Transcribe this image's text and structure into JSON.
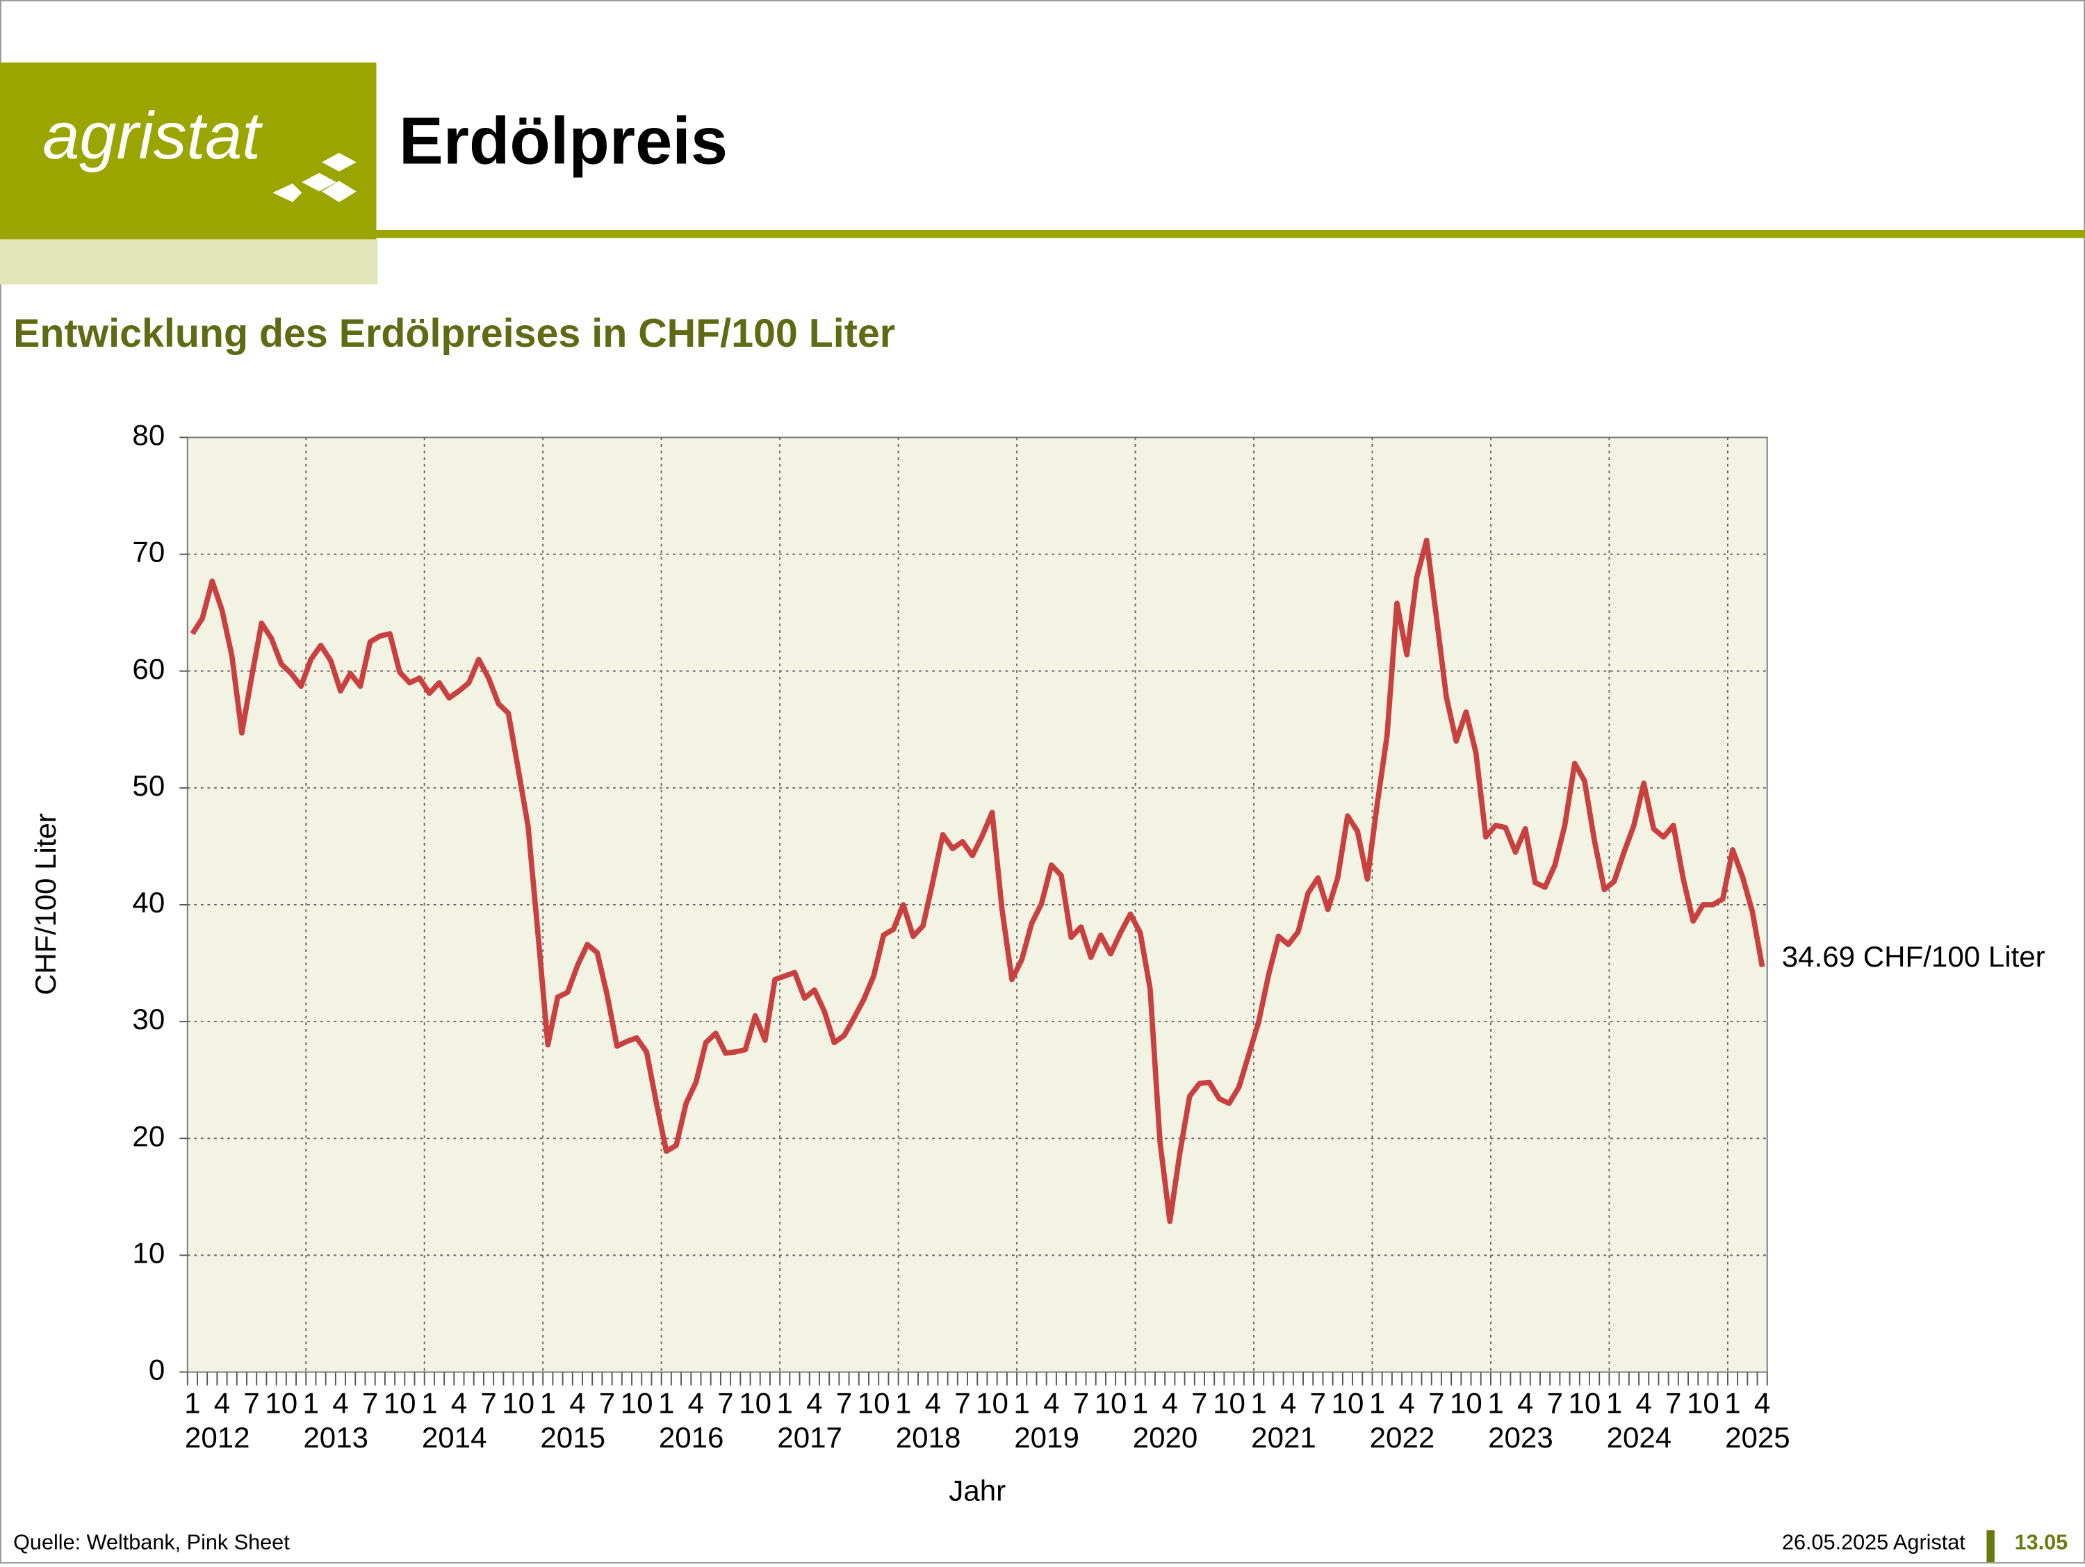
{
  "header": {
    "logo": "agristat",
    "title": "Erdölpreis"
  },
  "chart_data": {
    "type": "line",
    "title": "Entwicklung des Erdölpreises in CHF/100 Liter",
    "categories": [
      "1",
      null,
      null,
      "4",
      null,
      null,
      "7",
      null,
      null,
      "10",
      null,
      null,
      "1",
      null,
      null,
      "4",
      null,
      null,
      "7",
      null,
      null,
      "10",
      null,
      null,
      "1",
      null,
      null,
      "4",
      null,
      null,
      "7",
      null,
      null,
      "10",
      null,
      null,
      "1",
      null,
      null,
      "4",
      null,
      null,
      "7",
      null,
      null,
      "10",
      null,
      null,
      "1",
      null,
      null,
      "4",
      null,
      null,
      "7",
      null,
      null,
      "10",
      null,
      null,
      "1",
      null,
      null,
      "4",
      null,
      null,
      "7",
      null,
      null,
      "10",
      null,
      null,
      "1",
      null,
      null,
      "4",
      null,
      null,
      "7",
      null,
      null,
      "10",
      null,
      null,
      "1",
      null,
      null,
      "4",
      null,
      null,
      "7",
      null,
      null,
      "10",
      null,
      null,
      "1",
      null,
      null,
      "4",
      null,
      null,
      "7",
      null,
      null,
      "10",
      null,
      null,
      "1",
      null,
      null,
      "4",
      null,
      null,
      "7",
      null,
      null,
      "10",
      null,
      null,
      "1",
      null,
      null,
      "4",
      null,
      null,
      "7",
      null,
      null,
      "10",
      null,
      null,
      "1",
      null,
      null,
      "4",
      null,
      null,
      "7",
      null,
      null,
      "10",
      null,
      null,
      "1",
      null,
      null,
      "4",
      null,
      null,
      "7",
      null,
      null,
      "10",
      null,
      null,
      "1",
      null,
      null,
      "4"
    ],
    "years": [
      "2012",
      "2013",
      "2014",
      "2015",
      "2016",
      "2017",
      "2018",
      "2019",
      "2020",
      "2021",
      "2022",
      "2023",
      "2024",
      "2025"
    ],
    "values": [
      63.2,
      64.5,
      67.7,
      65.2,
      61.3,
      54.7,
      59.5,
      64.1,
      62.8,
      60.6,
      59.8,
      58.7,
      61.0,
      62.2,
      60.9,
      58.3,
      59.8,
      58.7,
      62.5,
      63.0,
      63.2,
      59.9,
      59.0,
      59.4,
      58.1,
      59.0,
      57.7,
      58.3,
      59.0,
      61.0,
      59.4,
      57.2,
      56.4,
      51.6,
      46.7,
      37.5,
      28.0,
      32.1,
      32.5,
      34.8,
      36.6,
      35.9,
      32.3,
      27.9,
      28.3,
      28.6,
      27.4,
      23.0,
      18.9,
      19.4,
      23.0,
      24.8,
      28.2,
      29.0,
      27.3,
      27.4,
      27.6,
      30.5,
      28.4,
      33.6,
      33.9,
      34.2,
      32.0,
      32.7,
      30.9,
      28.2,
      28.8,
      30.3,
      31.9,
      33.9,
      37.4,
      37.9,
      40.0,
      37.3,
      38.2,
      42.0,
      46.0,
      44.8,
      45.4,
      44.2,
      45.9,
      47.9,
      39.6,
      33.6,
      35.3,
      38.4,
      40.1,
      43.4,
      42.5,
      37.2,
      38.1,
      35.5,
      37.4,
      35.8,
      37.6,
      39.2,
      37.6,
      32.8,
      19.7,
      12.9,
      18.7,
      23.6,
      24.7,
      24.8,
      23.4,
      23.0,
      24.4,
      27.2,
      30.0,
      34.0,
      37.3,
      36.6,
      37.7,
      41.0,
      42.3,
      39.6,
      42.3,
      47.6,
      46.3,
      42.2,
      48.6,
      54.5,
      65.8,
      61.4,
      68.0,
      71.2,
      64.6,
      57.8,
      54.0,
      56.5,
      53.0,
      45.8,
      46.8,
      46.6,
      44.5,
      46.5,
      41.9,
      41.5,
      43.4,
      46.8,
      52.1,
      50.6,
      45.5,
      41.3,
      42.0,
      44.5,
      46.8,
      50.4,
      46.5,
      45.8,
      46.8,
      42.2,
      38.6,
      40.0,
      40.0,
      40.5,
      44.7,
      42.4,
      39.4,
      34.69
    ],
    "color": "#c84040",
    "annotation": "34.69 CHF/100 Liter",
    "ylabel": "CHF/100 Liter",
    "xlabel": "Jahr",
    "ylim": [
      0,
      80
    ],
    "yticks": [
      0,
      10,
      20,
      30,
      40,
      50,
      60,
      70,
      80
    ],
    "grid": true
  },
  "footer": {
    "source": "Quelle: Weltbank, Pink Sheet",
    "date": "26.05.2025 Agristat",
    "page": "13.05"
  }
}
